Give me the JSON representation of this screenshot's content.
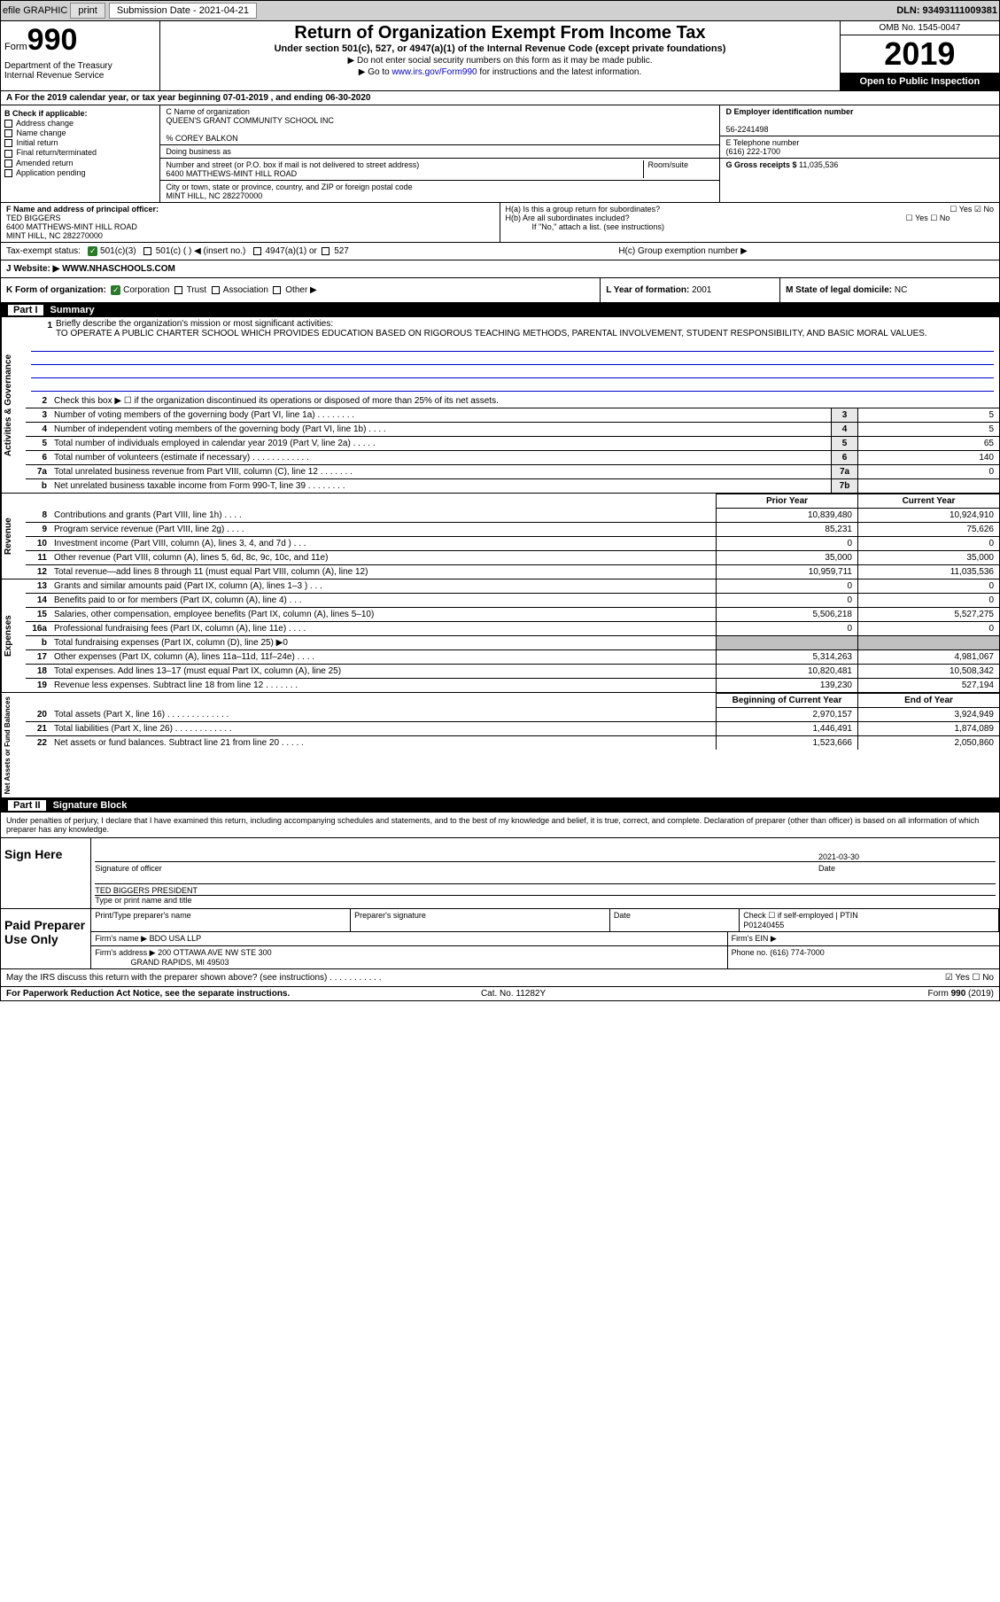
{
  "toolbar": {
    "efile": "efile GRAPHIC",
    "print": "print",
    "sub_label": "Submission Date - 2021-04-21",
    "dln": "DLN: 93493111009381"
  },
  "header": {
    "form": "Form",
    "num": "990",
    "dept": "Department of the Treasury\nInternal Revenue Service",
    "title": "Return of Organization Exempt From Income Tax",
    "sub": "Under section 501(c), 527, or 4947(a)(1) of the Internal Revenue Code (except private foundations)",
    "line1": "▶ Do not enter social security numbers on this form as it may be made public.",
    "line2_pre": "▶ Go to ",
    "line2_link": "www.irs.gov/Form990",
    "line2_post": " for instructions and the latest information.",
    "omb": "OMB No. 1545-0047",
    "year": "2019",
    "inspect": "Open to Public Inspection"
  },
  "period": "A For the 2019 calendar year, or tax year beginning 07-01-2019    , and ending 06-30-2020",
  "checkb": {
    "label": "B Check if applicable:",
    "items": [
      "Address change",
      "Name change",
      "Initial return",
      "Final return/terminated",
      "Amended return",
      "Application pending"
    ]
  },
  "entity": {
    "name_label": "C Name of organization",
    "name": "QUEEN'S GRANT COMMUNITY SCHOOL INC",
    "care": "% COREY BALKON",
    "dba_label": "Doing business as",
    "addr_label": "Number and street (or P.O. box if mail is not delivered to street address)",
    "room": "Room/suite",
    "addr": "6400 MATTHEWS-MINT HILL ROAD",
    "city_label": "City or town, state or province, country, and ZIP or foreign postal code",
    "city": "MINT HILL, NC  282270000",
    "ein_label": "D Employer identification number",
    "ein": "56-2241498",
    "tel_label": "E Telephone number",
    "tel": "(616) 222-1700",
    "gross_label": "G Gross receipts $ ",
    "gross": "11,035,536"
  },
  "officer": {
    "label": "F  Name and address of principal officer:",
    "name": "TED BIGGERS",
    "addr1": "6400 MATTHEWS-MINT HILL ROAD",
    "addr2": "MINT HILL, NC  282270000",
    "ha": "H(a)  Is this a group return for subordinates?",
    "ha_yn": "☐ Yes  ☑ No",
    "hb": "H(b)  Are all subordinates included?",
    "hb_yn": "☐ Yes  ☐ No",
    "hb_note": "If \"No,\" attach a list. (see instructions)",
    "hc": "H(c)  Group exemption number ▶"
  },
  "status": {
    "label": "Tax-exempt status:",
    "c3": "501(c)(3)",
    "c": "501(c) (   ) ◀ (insert no.)",
    "a1": "4947(a)(1) or",
    "s527": "527"
  },
  "website": {
    "label": "J Website: ▶",
    "val": "WWW.NHASCHOOLS.COM"
  },
  "orgform": {
    "label": "K Form of organization:",
    "corp": "Corporation",
    "trust": "Trust",
    "assoc": "Association",
    "other": "Other ▶",
    "year_label": "L Year of formation:",
    "year": "2001",
    "state_label": "M State of legal domicile:",
    "state": "NC"
  },
  "part1": {
    "num": "Part I",
    "title": "Summary"
  },
  "mission": {
    "num": "1",
    "label": "Briefly describe the organization's mission or most significant activities:",
    "text": "TO OPERATE A PUBLIC CHARTER SCHOOL WHICH PROVIDES EDUCATION BASED ON RIGOROUS TEACHING METHODS, PARENTAL INVOLVEMENT, STUDENT RESPONSIBILITY, AND BASIC MORAL VALUES."
  },
  "gov_lines": [
    {
      "n": "2",
      "t": "Check this box ▶ ☐  if the organization discontinued its operations or disposed of more than 25% of its net assets.",
      "b": "",
      "v": ""
    },
    {
      "n": "3",
      "t": "Number of voting members of the governing body (Part VI, line 1a)  .   .   .   .   .   .   .   .",
      "b": "3",
      "v": "5"
    },
    {
      "n": "4",
      "t": "Number of independent voting members of the governing body (Part VI, line 1b)  .   .   .   .",
      "b": "4",
      "v": "5"
    },
    {
      "n": "5",
      "t": "Total number of individuals employed in calendar year 2019 (Part V, line 2a)  .   .   .   .   .",
      "b": "5",
      "v": "65"
    },
    {
      "n": "6",
      "t": "Total number of volunteers (estimate if necessary)    .   .   .   .   .   .   .   .   .   .   .   .",
      "b": "6",
      "v": "140"
    },
    {
      "n": "7a",
      "t": "Total unrelated business revenue from Part VIII, column (C), line 12    .   .   .   .   .   .   .",
      "b": "7a",
      "v": "0"
    },
    {
      "n": "b",
      "t": "Net unrelated business taxable income from Form 990-T, line 39   .   .   .   .   .   .   .   .",
      "b": "7b",
      "v": ""
    }
  ],
  "cols": {
    "prior": "Prior Year",
    "current": "Current Year"
  },
  "rev_lines": [
    {
      "n": "8",
      "t": "Contributions and grants (Part VIII, line 1h)  .   .   .   .",
      "p": "10,839,480",
      "c": "10,924,910"
    },
    {
      "n": "9",
      "t": "Program service revenue (Part VIII, line 2g)  .   .   .   .",
      "p": "85,231",
      "c": "75,626"
    },
    {
      "n": "10",
      "t": "Investment income (Part VIII, column (A), lines 3, 4, and 7d )   .   .   .",
      "p": "0",
      "c": "0"
    },
    {
      "n": "11",
      "t": "Other revenue (Part VIII, column (A), lines 5, 6d, 8c, 9c, 10c, and 11e)",
      "p": "35,000",
      "c": "35,000"
    },
    {
      "n": "12",
      "t": "Total revenue—add lines 8 through 11 (must equal Part VIII, column (A), line 12)",
      "p": "10,959,711",
      "c": "11,035,536"
    }
  ],
  "exp_lines": [
    {
      "n": "13",
      "t": "Grants and similar amounts paid (Part IX, column (A), lines 1–3 )  .   .   .",
      "p": "0",
      "c": "0"
    },
    {
      "n": "14",
      "t": "Benefits paid to or for members (Part IX, column (A), line 4)  .   .   .",
      "p": "0",
      "c": "0"
    },
    {
      "n": "15",
      "t": "Salaries, other compensation, employee benefits (Part IX, column (A), lines 5–10)",
      "p": "5,506,218",
      "c": "5,527,275"
    },
    {
      "n": "16a",
      "t": "Professional fundraising fees (Part IX, column (A), line 11e)  .   .   .   .",
      "p": "0",
      "c": "0"
    },
    {
      "n": "b",
      "t": "Total fundraising expenses (Part IX, column (D), line 25) ▶0",
      "p": "",
      "c": "",
      "grey": true
    },
    {
      "n": "17",
      "t": "Other expenses (Part IX, column (A), lines 11a–11d, 11f–24e)  .   .   .   .",
      "p": "5,314,263",
      "c": "4,981,067"
    },
    {
      "n": "18",
      "t": "Total expenses. Add lines 13–17 (must equal Part IX, column (A), line 25)",
      "p": "10,820,481",
      "c": "10,508,342"
    },
    {
      "n": "19",
      "t": "Revenue less expenses. Subtract line 18 from line 12  .   .   .   .   .   .   .",
      "p": "139,230",
      "c": "527,194"
    }
  ],
  "na_cols": {
    "begin": "Beginning of Current Year",
    "end": "End of Year"
  },
  "na_lines": [
    {
      "n": "20",
      "t": "Total assets (Part X, line 16)  .   .   .   .   .   .   .   .   .   .   .   .   .",
      "p": "2,970,157",
      "c": "3,924,949"
    },
    {
      "n": "21",
      "t": "Total liabilities (Part X, line 26)  .   .   .   .   .   .   .   .   .   .   .   .",
      "p": "1,446,491",
      "c": "1,874,089"
    },
    {
      "n": "22",
      "t": "Net assets or fund balances. Subtract line 21 from line 20  .   .   .   .   .",
      "p": "1,523,666",
      "c": "2,050,860"
    }
  ],
  "part2": {
    "num": "Part II",
    "title": "Signature Block"
  },
  "sig": {
    "decl": "Under penalties of perjury, I declare that I have examined this return, including accompanying schedules and statements, and to the best of my knowledge and belief, it is true, correct, and complete. Declaration of preparer (other than officer) is based on all information of which preparer has any knowledge.",
    "sign_here": "Sign Here",
    "sig_of": "Signature of officer",
    "date": "Date",
    "date_val": "2021-03-30",
    "name": "TED BIGGERS  PRESIDENT",
    "name_label": "Type or print name and title"
  },
  "prep": {
    "label": "Paid Preparer Use Only",
    "h1": "Print/Type preparer's name",
    "h2": "Preparer's signature",
    "h3": "Date",
    "h4_chk": "Check ☐ if self-employed",
    "h4_ptin": "PTIN",
    "ptin": "P01240455",
    "firm_label": "Firm's name    ▶",
    "firm": "BDO USA LLP",
    "ein_label": "Firm's EIN ▶",
    "addr_label": "Firm's address ▶",
    "addr": "200 OTTAWA AVE NW STE 300",
    "addr2": "GRAND RAPIDS, MI  49503",
    "phone_label": "Phone no.",
    "phone": "(616) 774-7000"
  },
  "discuss": {
    "q": "May the IRS discuss this return with the preparer shown above? (see instructions)   .   .   .   .   .   .   .   .   .   .   .",
    "yn": "☑ Yes  ☐ No"
  },
  "footer": {
    "l": "For Paperwork Reduction Act Notice, see the separate instructions.",
    "m": "Cat. No. 11282Y",
    "r": "Form 990 (2019)"
  }
}
